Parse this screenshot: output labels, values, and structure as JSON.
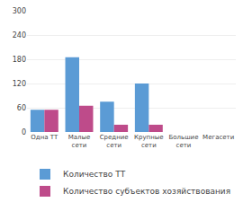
{
  "chart_data": {
    "type": "bar",
    "categories": [
      "Одна ТТ",
      "Малые\nсети",
      "Средние\nсети",
      "Крупные\nсети",
      "Большие\nсети",
      "Мегасети"
    ],
    "series": [
      {
        "name": "Количество ТТ",
        "color": "#5b9bd5",
        "values": [
          55,
          185,
          75,
          120,
          0,
          0
        ]
      },
      {
        "name": "Количество субъектов хозяйствования",
        "color": "#be4b8a",
        "values": [
          55,
          65,
          18,
          18,
          0,
          0
        ]
      }
    ],
    "ylim": [
      0,
      300
    ],
    "yticks": [
      0,
      60,
      120,
      180,
      240,
      300
    ],
    "grid": true,
    "legend": "bottom"
  }
}
